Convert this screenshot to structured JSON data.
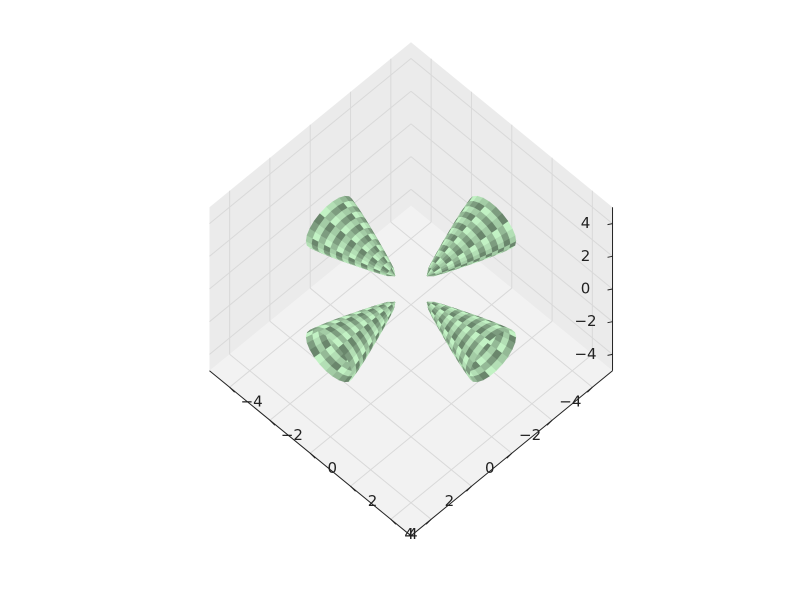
{
  "chart_data": {
    "type": "surface3d",
    "title": "",
    "axes": {
      "x": {
        "ticks": [
          -4,
          -2,
          0,
          2,
          4
        ],
        "tick_labels": [
          "−4",
          "−2",
          "0",
          "2",
          "4"
        ],
        "range": [
          -5,
          5
        ],
        "label": ""
      },
      "y": {
        "ticks": [
          -4,
          -2,
          0,
          2,
          4
        ],
        "tick_labels": [
          "−4",
          "−2",
          "0",
          "2",
          "4"
        ],
        "range": [
          -5,
          5
        ],
        "label": ""
      },
      "z": {
        "ticks": [
          -4,
          -2,
          0,
          2,
          4
        ],
        "tick_labels": [
          "−4",
          "−2",
          "0",
          "2",
          "4"
        ],
        "range": [
          -5,
          5
        ],
        "label": ""
      }
    },
    "view": {
      "elev_deg": 55,
      "azim_deg": 45
    },
    "grid": true,
    "surfaces": [
      {
        "shape": "teardrop",
        "center": [
          3,
          0,
          0
        ],
        "tip": [
          0.8,
          0,
          0
        ]
      },
      {
        "shape": "teardrop",
        "center": [
          -3,
          0,
          0
        ],
        "tip": [
          -0.8,
          0,
          0
        ]
      },
      {
        "shape": "teardrop",
        "center": [
          0,
          3,
          0
        ],
        "tip": [
          0,
          0.8,
          0
        ]
      },
      {
        "shape": "teardrop",
        "center": [
          0,
          -3,
          0
        ],
        "tip": [
          0,
          -0.8,
          0
        ]
      }
    ],
    "colors": {
      "surface_shades": [
        "#c2f2c4",
        "#b3dfb5",
        "#a3cca5",
        "#94b996",
        "#7d9c7f",
        "#6a866c"
      ],
      "pane": "#f2f2f2",
      "pane_side": "#ebebeb",
      "gridline": "#d9d9d9",
      "axis_line": "#222222"
    }
  }
}
